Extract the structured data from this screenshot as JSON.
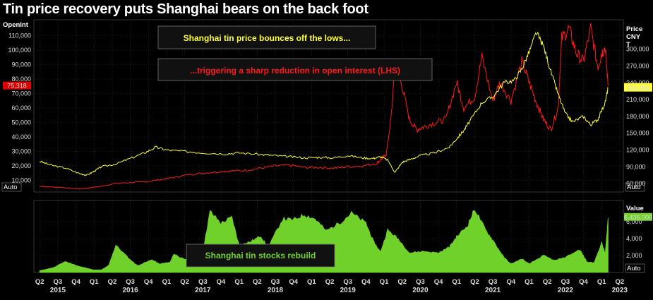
{
  "title": "Tin price recovery puts Shanghai bears on the back foot",
  "colors": {
    "background": "#000000",
    "open_interest": "#ff1a1a",
    "price": "#ffff33",
    "stocks": "#6fd12a",
    "stocks_fill": "#6fd12a",
    "grid": "#333333",
    "oi_tag": "#e00000",
    "price_tag": "#ffff33",
    "stocks_tag": "#6fd12a"
  },
  "chart_data": [
    {
      "type": "line",
      "panel": "top",
      "left_axis_header": "OpenInt",
      "right_axis_header": [
        "Price",
        "CNY",
        "T"
      ],
      "left_ticks": [
        "10,000",
        "20,000",
        "30,000",
        "40,000",
        "50,000",
        "60,000",
        "70,000",
        "80,000",
        "90,000",
        "100,000",
        "110,000"
      ],
      "left_tick_values": [
        10000,
        20000,
        30000,
        40000,
        50000,
        60000,
        70000,
        80000,
        90000,
        100000,
        110000
      ],
      "right_ticks": [
        "60,000",
        "90,000",
        "120,000",
        "150,000",
        "180,000",
        "210,000",
        "240,000",
        "270,000",
        "300,000"
      ],
      "right_tick_values": [
        60000,
        90000,
        120000,
        150000,
        180000,
        210000,
        240000,
        270000,
        300000
      ],
      "left_ylim": [
        2000,
        120000
      ],
      "right_ylim": [
        45000,
        350000
      ],
      "auto_left_label": "Auto",
      "auto_right_label": "Auto",
      "last_open_interest_label": "75,318",
      "last_price_label": "231,950",
      "annotations": [
        "Shanghai tin price bounces off the lows...",
        "...triggering a sharp reduction in open interest (LHS)"
      ],
      "series": [
        {
          "axis": "left",
          "x": [
            2015.25,
            2015.4,
            2015.6,
            2015.8,
            2015.95,
            2016.1,
            2016.3,
            2016.5,
            2016.7,
            2016.9,
            2017.1,
            2017.3,
            2017.5,
            2017.7,
            2017.9,
            2018.1,
            2018.3,
            2018.5,
            2018.7,
            2018.9,
            2019.1,
            2019.3,
            2019.5,
            2019.7,
            2019.9,
            2019.97,
            2020.03,
            2020.1,
            2020.15,
            2020.25,
            2020.35,
            2020.45,
            2020.55,
            2020.7,
            2020.85,
            2021.0,
            2021.1,
            2021.25,
            2021.35,
            2021.5,
            2021.6,
            2021.75,
            2021.9,
            2022.0,
            2022.1,
            2022.2,
            2022.3,
            2022.4,
            2022.45,
            2022.55,
            2022.65,
            2022.75,
            2022.85,
            2022.95,
            2023.0,
            2023.05,
            2023.09
          ],
          "values": [
            6000,
            5500,
            5000,
            4000,
            5000,
            6000,
            8000,
            8500,
            9000,
            10500,
            12000,
            14000,
            15000,
            16000,
            16500,
            17000,
            18500,
            20000,
            20500,
            19000,
            19000,
            18500,
            19500,
            20000,
            22000,
            25000,
            28000,
            55000,
            88000,
            75000,
            52000,
            45000,
            47000,
            50000,
            52000,
            78000,
            60000,
            68000,
            95000,
            65000,
            78000,
            65000,
            92000,
            78000,
            64000,
            52000,
            45000,
            60000,
            108000,
            115000,
            98000,
            92000,
            115000,
            88000,
            98000,
            102000,
            75318
          ]
        },
        {
          "axis": "right",
          "x": [
            2015.25,
            2015.4,
            2015.6,
            2015.8,
            2015.9,
            2016.0,
            2016.1,
            2016.3,
            2016.5,
            2016.7,
            2016.85,
            2017.0,
            2017.2,
            2017.5,
            2017.8,
            2018.0,
            2018.3,
            2018.5,
            2018.7,
            2018.9,
            2019.1,
            2019.3,
            2019.5,
            2019.7,
            2019.85,
            2019.95,
            2020.05,
            2020.15,
            2020.25,
            2020.35,
            2020.5,
            2020.7,
            2020.9,
            2021.0,
            2021.1,
            2021.2,
            2021.35,
            2021.5,
            2021.65,
            2021.8,
            2021.9,
            2022.0,
            2022.1,
            2022.2,
            2022.3,
            2022.4,
            2022.5,
            2022.6,
            2022.75,
            2022.85,
            2022.95,
            2023.05,
            2023.09
          ],
          "values": [
            100000,
            93000,
            88000,
            78000,
            75000,
            82000,
            90000,
            95000,
            105000,
            115000,
            125000,
            120000,
            118000,
            115000,
            113000,
            115000,
            112000,
            110000,
            108000,
            106000,
            107000,
            106000,
            110000,
            106000,
            105000,
            108000,
            102000,
            80000,
            98000,
            103000,
            110000,
            115000,
            125000,
            140000,
            155000,
            175000,
            205000,
            215000,
            240000,
            245000,
            265000,
            295000,
            330000,
            305000,
            260000,
            220000,
            185000,
            170000,
            180000,
            165000,
            175000,
            205000,
            231950
          ]
        }
      ],
      "series_names": [
        "open interest",
        "price"
      ]
    },
    {
      "type": "area",
      "panel": "bottom",
      "right_axis_header": [
        "Value",
        "T"
      ],
      "right_ticks": [
        "2,000",
        "4,000",
        "6,000"
      ],
      "right_tick_values": [
        2000,
        4000,
        6000
      ],
      "ylim": [
        0,
        8000
      ],
      "auto_label": "Auto",
      "last_value_label": "6,436.000",
      "annotation": "Shanghai tin stocks rebuild",
      "x": [
        2015.25,
        2015.45,
        2015.6,
        2015.8,
        2016.0,
        2016.1,
        2016.2,
        2016.3,
        2016.5,
        2016.6,
        2016.8,
        2016.9,
        2017.05,
        2017.1,
        2017.25,
        2017.35,
        2017.5,
        2017.6,
        2017.75,
        2017.9,
        2018.0,
        2018.15,
        2018.3,
        2018.4,
        2018.6,
        2018.75,
        2018.9,
        2019.05,
        2019.2,
        2019.4,
        2019.55,
        2019.75,
        2019.85,
        2019.95,
        2020.05,
        2020.2,
        2020.35,
        2020.55,
        2020.75,
        2020.9,
        2021.0,
        2021.15,
        2021.25,
        2021.4,
        2021.5,
        2021.65,
        2021.75,
        2021.9,
        2022.0,
        2022.2,
        2022.35,
        2022.5,
        2022.7,
        2022.8,
        2022.9,
        2023.0,
        2023.05,
        2023.09
      ],
      "values": [
        200,
        600,
        1300,
        700,
        300,
        300,
        800,
        3200,
        1500,
        800,
        1500,
        1000,
        1200,
        2200,
        1500,
        1700,
        2500,
        7200,
        5800,
        6500,
        3200,
        3600,
        4300,
        2900,
        6300,
        6200,
        6800,
        6300,
        4900,
        5900,
        7000,
        5800,
        3700,
        2400,
        5000,
        3900,
        2300,
        2500,
        2300,
        3000,
        4200,
        5500,
        7500,
        5000,
        3800,
        1800,
        1000,
        1600,
        1000,
        2000,
        1400,
        1800,
        2700,
        1200,
        1200,
        3500,
        2200,
        6436
      ]
    }
  ],
  "x_axis": {
    "quarters": [
      {
        "x": 2015.25,
        "label": "Q2"
      },
      {
        "x": 2015.5,
        "label": "Q3"
      },
      {
        "x": 2015.75,
        "label": "Q4"
      },
      {
        "x": 2016.0,
        "label": "Q1"
      },
      {
        "x": 2016.25,
        "label": "Q2"
      },
      {
        "x": 2016.5,
        "label": "Q3"
      },
      {
        "x": 2016.75,
        "label": "Q4"
      },
      {
        "x": 2017.0,
        "label": "Q1"
      },
      {
        "x": 2017.25,
        "label": "Q2"
      },
      {
        "x": 2017.5,
        "label": "Q3"
      },
      {
        "x": 2017.75,
        "label": "Q4"
      },
      {
        "x": 2018.0,
        "label": "Q1"
      },
      {
        "x": 2018.25,
        "label": "Q2"
      },
      {
        "x": 2018.5,
        "label": "Q3"
      },
      {
        "x": 2018.75,
        "label": "Q4"
      },
      {
        "x": 2019.0,
        "label": "Q1"
      },
      {
        "x": 2019.25,
        "label": "Q2"
      },
      {
        "x": 2019.5,
        "label": "Q3"
      },
      {
        "x": 2019.75,
        "label": "Q4"
      },
      {
        "x": 2020.0,
        "label": "Q1"
      },
      {
        "x": 2020.25,
        "label": "Q2"
      },
      {
        "x": 2020.5,
        "label": "Q3"
      },
      {
        "x": 2020.75,
        "label": "Q4"
      },
      {
        "x": 2021.0,
        "label": "Q1"
      },
      {
        "x": 2021.25,
        "label": "Q2"
      },
      {
        "x": 2021.5,
        "label": "Q3"
      },
      {
        "x": 2021.75,
        "label": "Q4"
      },
      {
        "x": 2022.0,
        "label": "Q1"
      },
      {
        "x": 2022.25,
        "label": "Q2"
      },
      {
        "x": 2022.5,
        "label": "Q3"
      },
      {
        "x": 2022.75,
        "label": "Q4"
      },
      {
        "x": 2023.0,
        "label": "Q1"
      },
      {
        "x": 2023.25,
        "label": "Q2"
      }
    ],
    "years": [
      {
        "x": 2015.5,
        "label": "2015"
      },
      {
        "x": 2016.5,
        "label": "2016"
      },
      {
        "x": 2017.5,
        "label": "2017"
      },
      {
        "x": 2018.5,
        "label": "2018"
      },
      {
        "x": 2019.5,
        "label": "2019"
      },
      {
        "x": 2020.5,
        "label": "2020"
      },
      {
        "x": 2021.5,
        "label": "2021"
      },
      {
        "x": 2022.5,
        "label": "2022"
      },
      {
        "x": 2023.25,
        "label": "2023"
      }
    ]
  }
}
